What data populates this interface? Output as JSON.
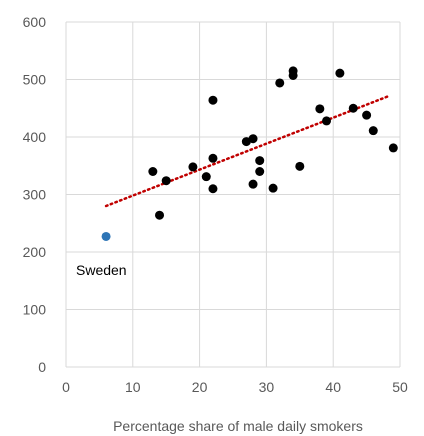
{
  "chart_data": {
    "type": "scatter",
    "title": "",
    "xlabel": "Percentage share of male daily  smokers",
    "ylabel": "",
    "xlim": [
      0,
      50
    ],
    "ylim": [
      0,
      600
    ],
    "x_ticks": [
      "0",
      "10",
      "20",
      "30",
      "40",
      "50"
    ],
    "y_ticks": [
      "0",
      "100",
      "200",
      "300",
      "400",
      "500",
      "600"
    ],
    "grid": true,
    "legend": "none",
    "series": [
      {
        "color": "#000000",
        "points": [
          [
            13,
            340
          ],
          [
            14,
            264
          ],
          [
            15,
            324
          ],
          [
            19,
            348
          ],
          [
            21,
            331
          ],
          [
            22,
            363
          ],
          [
            22,
            310
          ],
          [
            22,
            464
          ],
          [
            27,
            392
          ],
          [
            28,
            397
          ],
          [
            28,
            318
          ],
          [
            29,
            359
          ],
          [
            29,
            340
          ],
          [
            31,
            311
          ],
          [
            32,
            494
          ],
          [
            34,
            507
          ],
          [
            34,
            515
          ],
          [
            35,
            349
          ],
          [
            38,
            449
          ],
          [
            39,
            428
          ],
          [
            41,
            511
          ],
          [
            43,
            450
          ],
          [
            45,
            438
          ],
          [
            46,
            411
          ],
          [
            49,
            381
          ]
        ]
      },
      {
        "color": "#2E75B6",
        "points": [
          [
            6,
            227
          ]
        ]
      }
    ],
    "trendline": {
      "color": "#C00000",
      "style": "dotted",
      "from": [
        6,
        280
      ],
      "to": [
        48.5,
        472
      ]
    },
    "annotations": [
      {
        "text": "Sweden",
        "x": 6,
        "y": 227
      }
    ]
  }
}
